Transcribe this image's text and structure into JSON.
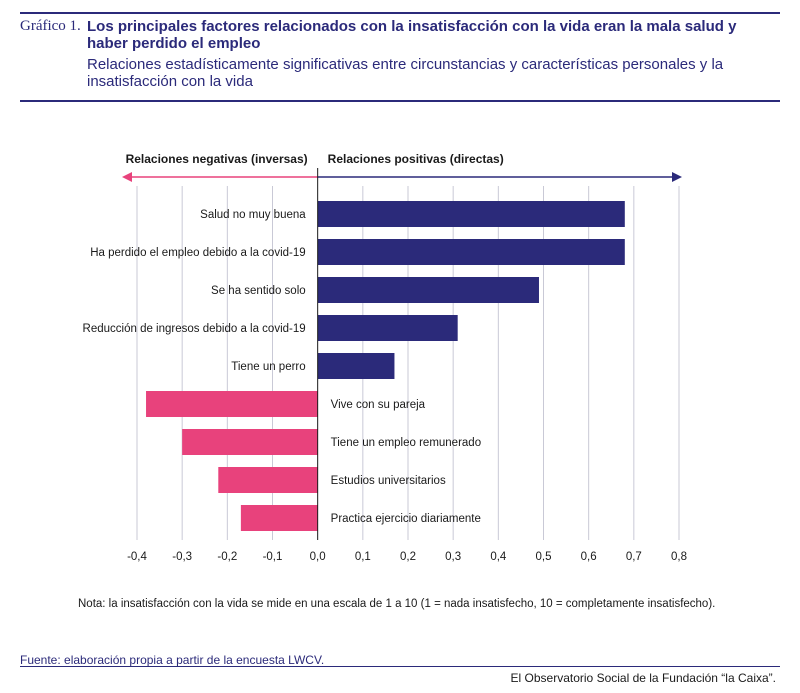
{
  "header": {
    "figure_label": "Gráfico 1.",
    "title": "Los principales factores relacionados con la insatisfacción con la vida eran la mala salud y haber perdido el empleo",
    "subtitle": "Relaciones estadísticamente significativas entre circunstancias y características personales y la insatisfacción con la vida"
  },
  "colors": {
    "positive": "#2b2a7a",
    "negative": "#e8427c",
    "grid": "#c9c9d6",
    "rule": "#2b2a7a"
  },
  "chart_data": {
    "type": "bar",
    "orientation": "horizontal",
    "negative_header": "Relaciones negativas (inversas)",
    "positive_header": "Relaciones positivas (directas)",
    "categories": [
      "Salud no muy buena",
      "Ha perdido el empleo debido a la covid-19",
      "Se ha sentido solo",
      "Reducción de ingresos debido a la covid-19",
      "Tiene un perro",
      "Vive con su pareja",
      "Tiene un empleo remunerado",
      "Estudios universitarios",
      "Practica ejercicio diariamente"
    ],
    "values": [
      0.68,
      0.68,
      0.49,
      0.31,
      0.17,
      -0.38,
      -0.3,
      -0.22,
      -0.17
    ],
    "xlim": [
      -0.4,
      0.8
    ],
    "xticks": [
      -0.4,
      -0.3,
      -0.2,
      -0.1,
      0.0,
      0.1,
      0.2,
      0.3,
      0.4,
      0.5,
      0.6,
      0.7,
      0.8
    ],
    "xtick_labels": [
      "-0,4",
      "-0,3",
      "-0,2",
      "-0,1",
      "0,0",
      "0,1",
      "0,2",
      "0,3",
      "0,4",
      "0,5",
      "0,6",
      "0,7",
      "0,8"
    ],
    "grid": true
  },
  "note": "Nota: la insatisfacción con la vida se mide en una escala de 1 a 10 (1 = nada insatisfecho, 10 = completamente insatisfecho).",
  "source": "Fuente: elaboración propia a partir de la encuesta LWCV.",
  "footer": "El Observatorio Social de la Fundación “la Caixa”."
}
